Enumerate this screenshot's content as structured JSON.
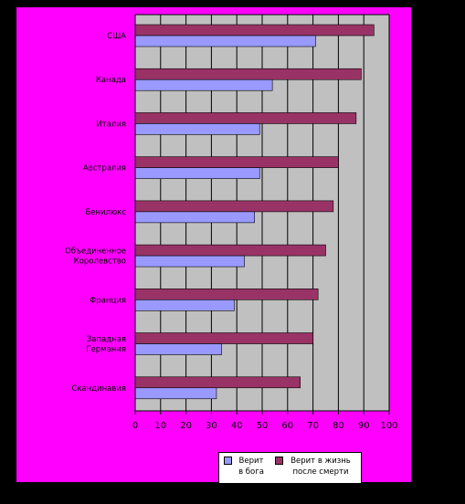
{
  "chart_data": {
    "type": "bar",
    "orientation": "horizontal",
    "categories": [
      "США",
      "Канада",
      "Италия",
      "Австралия",
      "Бенилюкс",
      "Объединенное Королевство",
      "Франция",
      "Западная Германия",
      "Скандинавия"
    ],
    "category_lines": [
      [
        "США"
      ],
      [
        "Канада"
      ],
      [
        "Италия"
      ],
      [
        "Австралия"
      ],
      [
        "Бенилюкс"
      ],
      [
        "Объединенное",
        "Королевство"
      ],
      [
        "Франция"
      ],
      [
        "Западная",
        "Германия"
      ],
      [
        "Скандинавия"
      ]
    ],
    "series": [
      {
        "name": "Верит в бога",
        "name_lines": [
          "Верит",
          "в бога"
        ],
        "color": "#9999ff",
        "values": [
          71,
          54,
          49,
          49,
          47,
          43,
          39,
          34,
          32
        ]
      },
      {
        "name": "Верит в жизнь после смерти",
        "name_lines": [
          "Верит в жизнь",
          "после смерти"
        ],
        "color": "#993366",
        "values": [
          94,
          89,
          87,
          80,
          78,
          75,
          72,
          70,
          65
        ]
      }
    ],
    "x_ticks": [
      "0",
      "10",
      "20",
      "30",
      "40",
      "50",
      "60",
      "70",
      "80",
      "90",
      "100"
    ],
    "xlim": [
      0,
      100
    ],
    "grid": true,
    "legend_position": "bottom",
    "plot_background": "#c0c0c0"
  }
}
